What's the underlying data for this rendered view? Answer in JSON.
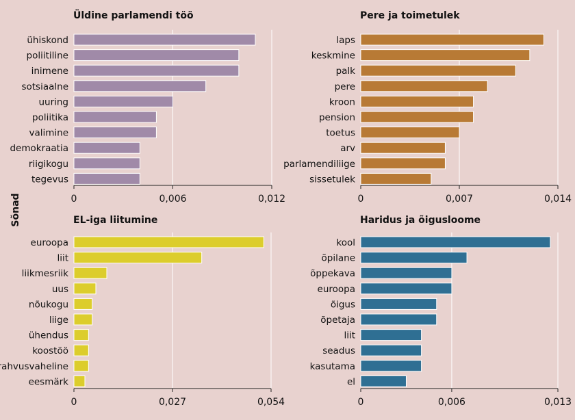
{
  "ylabel": "Sõnad",
  "colors": {
    "background": "#e8d2cf",
    "purple": "#a08aa8",
    "orange": "#b87a35",
    "yellow": "#dccd2c",
    "blue": "#2f6f93"
  },
  "chart_data": [
    {
      "type": "bar",
      "orientation": "horizontal",
      "title": "Üldine parlamendi töö",
      "color": "#a08aa8",
      "categories": [
        "ühiskond",
        "poliitiline",
        "inimene",
        "sotsiaalne",
        "uuring",
        "poliitika",
        "valimine",
        "demokraatia",
        "riigikogu",
        "tegevus"
      ],
      "values": [
        0.011,
        0.01,
        0.01,
        0.008,
        0.006,
        0.005,
        0.005,
        0.004,
        0.004,
        0.004
      ],
      "xlim": [
        0,
        0.012
      ],
      "ticks": [
        0,
        0.006,
        0.012
      ],
      "tick_labels": [
        "0",
        "0,006",
        "0,012"
      ]
    },
    {
      "type": "bar",
      "orientation": "horizontal",
      "title": "Pere ja toimetulek",
      "color": "#b87a35",
      "categories": [
        "laps",
        "keskmine",
        "palk",
        "pere",
        "kroon",
        "pension",
        "toetus",
        "arv",
        "parlamendiliige",
        "sissetulek"
      ],
      "values": [
        0.013,
        0.012,
        0.011,
        0.009,
        0.008,
        0.008,
        0.007,
        0.006,
        0.006,
        0.005
      ],
      "xlim": [
        0,
        0.014
      ],
      "ticks": [
        0,
        0.007,
        0.014
      ],
      "tick_labels": [
        "0",
        "0,007",
        "0,014"
      ]
    },
    {
      "type": "bar",
      "orientation": "horizontal",
      "title": "EL-iga liitumine",
      "color": "#dccd2c",
      "categories": [
        "euroopa",
        "liit",
        "liikmesriik",
        "uus",
        "nõukogu",
        "liige",
        "ühendus",
        "koostöö",
        "rahvusvaheline",
        "eesmärk"
      ],
      "values": [
        0.052,
        0.035,
        0.009,
        0.006,
        0.005,
        0.005,
        0.004,
        0.004,
        0.004,
        0.003
      ],
      "xlim": [
        0,
        0.054
      ],
      "ticks": [
        0,
        0.027,
        0.054
      ],
      "tick_labels": [
        "0",
        "0,027",
        "0,054"
      ]
    },
    {
      "type": "bar",
      "orientation": "horizontal",
      "title": "Haridus ja õigusloome",
      "color": "#2f6f93",
      "categories": [
        "kool",
        "õpilane",
        "õppekava",
        "euroopa",
        "õigus",
        "õpetaja",
        "liit",
        "seadus",
        "kasutama",
        "el"
      ],
      "values": [
        0.0125,
        0.007,
        0.006,
        0.006,
        0.005,
        0.005,
        0.004,
        0.004,
        0.004,
        0.003
      ],
      "xlim": [
        0,
        0.013
      ],
      "ticks": [
        0,
        0.006,
        0.013
      ],
      "tick_labels": [
        "0",
        "0,006",
        "0,013"
      ]
    }
  ]
}
